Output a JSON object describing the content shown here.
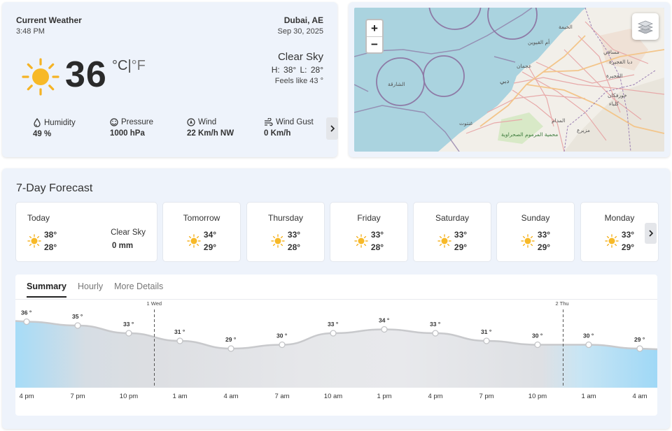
{
  "current": {
    "title": "Current Weather",
    "time": "3:48 PM",
    "city": "Dubai, AE",
    "date": "Sep 30, 2025",
    "temp": "36",
    "unit_c": "°C",
    "unit_sep": "|",
    "unit_f": "°F",
    "condition": "Clear Sky",
    "hilo": "H: 38°  L: 28°",
    "feels": "Feels like 43 °",
    "icon": "sun-icon",
    "stats": [
      {
        "label": "Humidity",
        "value": "49 %",
        "icon": "droplet-icon"
      },
      {
        "label": "Pressure",
        "value": "1000 hPa",
        "icon": "gauge-icon"
      },
      {
        "label": "Wind",
        "value": "22 Km/h NW",
        "icon": "compass-icon"
      },
      {
        "label": "Wind Gust",
        "value": "0 Km/h",
        "icon": "wind-icon"
      }
    ]
  },
  "map": {
    "zoom_in": "+",
    "zoom_out": "−",
    "labels": {
      "sharjah_sea": "الشارقة",
      "dubai": "دبي",
      "ajman": "عجمان",
      "al_qaiwain": "أم القيوين",
      "ras_al_khaimah": "الخيمة",
      "fujairah": "الفجيرة",
      "dibba": "دبا الفجيرة",
      "kalba": "كلباء",
      "al_madam": "المدام",
      "ghantoot": "غنتوت",
      "marmoum": "محمية المرموم الصحراوية",
      "masafi": "مسافي",
      "hatta": "مزيرع",
      "khorfakkan": "خورفكان"
    }
  },
  "forecast": {
    "title": "7-Day Forecast",
    "days": [
      {
        "name": "Today",
        "high": "38°",
        "low": "28°",
        "condition": "Clear Sky",
        "precip": "0 mm"
      },
      {
        "name": "Tomorrow",
        "high": "34°",
        "low": "29°"
      },
      {
        "name": "Thursday",
        "high": "33°",
        "low": "28°"
      },
      {
        "name": "Friday",
        "high": "33°",
        "low": "28°"
      },
      {
        "name": "Saturday",
        "high": "33°",
        "low": "29°"
      },
      {
        "name": "Sunday",
        "high": "33°",
        "low": "29°"
      },
      {
        "name": "Monday",
        "high": "33°",
        "low": "29°"
      }
    ],
    "tabs": [
      "Summary",
      "Hourly",
      "More Details"
    ]
  },
  "colors": {
    "card_bg": "#eef3fb",
    "sun": "#f5b324",
    "chart_blue": "#a6dcf7",
    "chart_gray": "#dcdee2"
  },
  "chart_data": {
    "type": "area",
    "x": [
      "4 pm",
      "7 pm",
      "10 pm",
      "1 am",
      "4 am",
      "7 am",
      "10 am",
      "1 pm",
      "4 pm",
      "7 pm",
      "10 pm",
      "1 am",
      "4 am"
    ],
    "values": [
      36,
      35,
      33,
      31,
      29,
      30,
      33,
      34,
      33,
      31,
      30,
      30,
      29
    ],
    "value_labels": [
      "36 °",
      "35 °",
      "33 °",
      "31 °",
      "29 °",
      "30 °",
      "33 °",
      "34 °",
      "33 °",
      "31 °",
      "30 °",
      "30 °",
      "29 °"
    ],
    "day_markers": [
      {
        "label": "1 Wed",
        "after_index": 2.5
      },
      {
        "label": "2 Thu",
        "after_index": 10.5
      }
    ]
  }
}
